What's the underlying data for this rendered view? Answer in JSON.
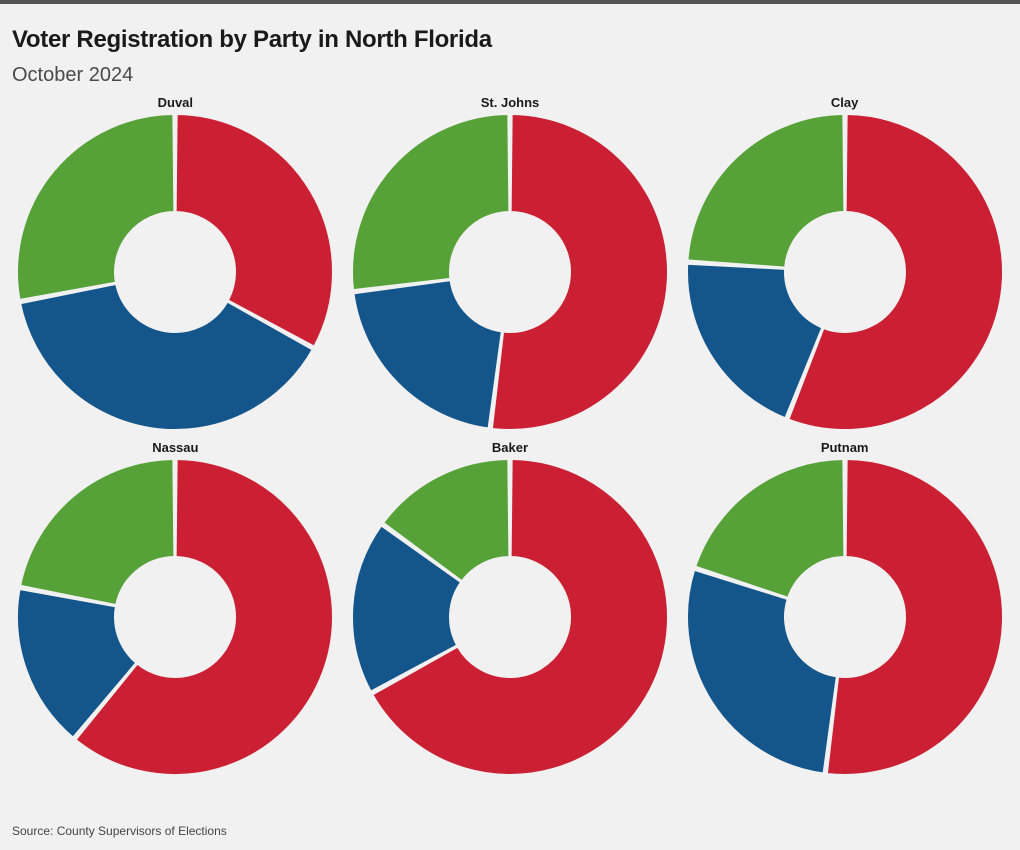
{
  "page": {
    "title": "Voter Registration by Party in North Florida",
    "subtitle": "October 2024",
    "source": "Source: County Supervisors of Elections",
    "background_color": "#f1f1f1",
    "topbar_color": "#555555",
    "title_fontsize": 24,
    "subtitle_fontsize": 20,
    "source_fontsize": 12
  },
  "chart_style": {
    "type": "donut",
    "outer_radius": 158,
    "inner_radius": 60,
    "slice_gap_deg": 1.2,
    "stroke_color": "#f1f1f1",
    "stroke_width": 2,
    "title_fontsize": 13,
    "title_fontweight": 700
  },
  "colors": {
    "republican": "#cb2033",
    "democrat": "#14568b",
    "other": "#57a139"
  },
  "charts": [
    {
      "name": "Duval",
      "slices": [
        {
          "party": "republican",
          "value": 33
        },
        {
          "party": "democrat",
          "value": 39
        },
        {
          "party": "other",
          "value": 28
        }
      ]
    },
    {
      "name": "St. Johns",
      "slices": [
        {
          "party": "republican",
          "value": 52
        },
        {
          "party": "democrat",
          "value": 21
        },
        {
          "party": "other",
          "value": 27
        }
      ]
    },
    {
      "name": "Clay",
      "slices": [
        {
          "party": "republican",
          "value": 56
        },
        {
          "party": "democrat",
          "value": 20
        },
        {
          "party": "other",
          "value": 24
        }
      ]
    },
    {
      "name": "Nassau",
      "slices": [
        {
          "party": "republican",
          "value": 61
        },
        {
          "party": "democrat",
          "value": 17
        },
        {
          "party": "other",
          "value": 22
        }
      ]
    },
    {
      "name": "Baker",
      "slices": [
        {
          "party": "republican",
          "value": 67
        },
        {
          "party": "democrat",
          "value": 18
        },
        {
          "party": "other",
          "value": 15
        }
      ]
    },
    {
      "name": "Putnam",
      "slices": [
        {
          "party": "republican",
          "value": 52
        },
        {
          "party": "democrat",
          "value": 28
        },
        {
          "party": "other",
          "value": 20
        }
      ]
    }
  ]
}
